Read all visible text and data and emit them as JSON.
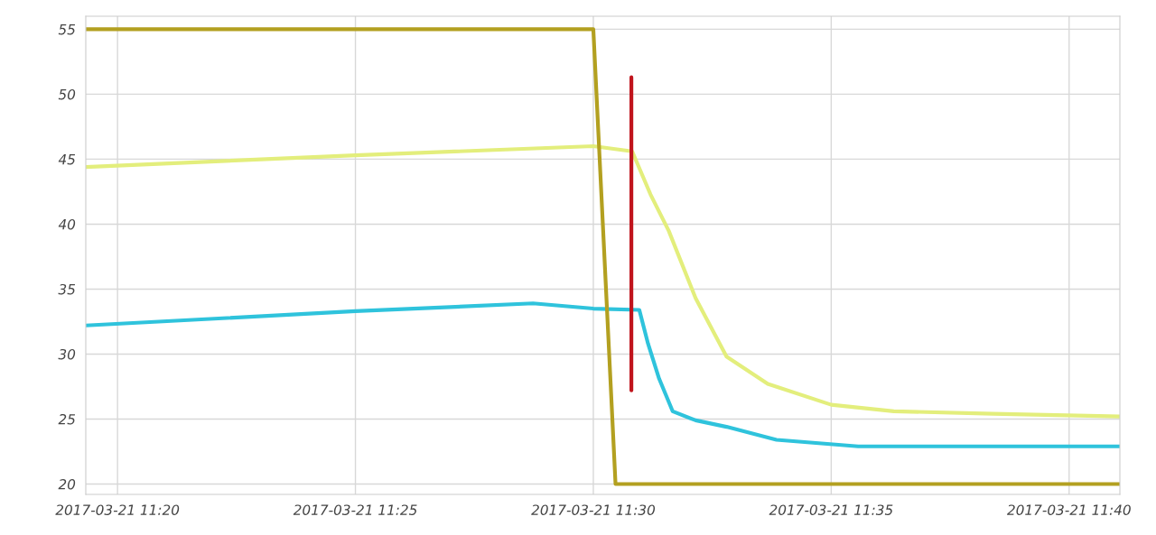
{
  "chart_data": {
    "type": "line",
    "xlim": [
      "2017-03-21T11:19:20",
      "2017-03-21T11:41:04"
    ],
    "ylim": [
      19.2,
      56
    ],
    "xticks": [
      {
        "value": "2017-03-21T11:20",
        "label": "2017-03-21 11:20"
      },
      {
        "value": "2017-03-21T11:25",
        "label": "2017-03-21 11:25"
      },
      {
        "value": "2017-03-21T11:30",
        "label": "2017-03-21 11:30"
      },
      {
        "value": "2017-03-21T11:35",
        "label": "2017-03-21 11:35"
      },
      {
        "value": "2017-03-21T11:40",
        "label": "2017-03-21 11:40"
      }
    ],
    "yticks": [
      20,
      25,
      30,
      35,
      40,
      45,
      50,
      55
    ],
    "grid": true,
    "marker": "none",
    "line_style": "solid",
    "series": [
      {
        "color": "#e3ee7c",
        "x": [
          "2017-03-21T11:19:20",
          "2017-03-21T11:25:00",
          "2017-03-21T11:30:00",
          "2017-03-21T11:30:49",
          "2017-03-21T11:31:12",
          "2017-03-21T11:31:35",
          "2017-03-21T11:32:09",
          "2017-03-21T11:32:48",
          "2017-03-21T11:33:40",
          "2017-03-21T11:35:00",
          "2017-03-21T11:36:19",
          "2017-03-21T11:38:24",
          "2017-03-21T11:41:04"
        ],
        "values": [
          44.4,
          45.3,
          46.0,
          45.6,
          42.3,
          39.5,
          34.3,
          29.8,
          27.7,
          26.1,
          25.6,
          25.4,
          25.2
        ]
      },
      {
        "color": "#2fc3dc",
        "x": [
          "2017-03-21T11:19:20",
          "2017-03-21T11:25:00",
          "2017-03-21T11:28:44",
          "2017-03-21T11:30:00",
          "2017-03-21T11:30:58",
          "2017-03-21T11:31:09",
          "2017-03-21T11:31:23",
          "2017-03-21T11:31:40",
          "2017-03-21T11:32:09",
          "2017-03-21T11:32:48",
          "2017-03-21T11:33:51",
          "2017-03-21T11:35:34",
          "2017-03-21T11:41:04"
        ],
        "values": [
          32.2,
          33.3,
          33.9,
          33.5,
          33.4,
          30.8,
          28.1,
          25.6,
          24.9,
          24.4,
          23.4,
          22.9,
          22.9
        ]
      },
      {
        "color": "#b3a020",
        "x": [
          "2017-03-21T11:19:20",
          "2017-03-21T11:30:00",
          "2017-03-21T11:30:28",
          "2017-03-21T11:41:04"
        ],
        "values": [
          55,
          55,
          20,
          20
        ]
      },
      {
        "color": "#c0141c",
        "x": [
          "2017-03-21T11:30:48",
          "2017-03-21T11:30:48"
        ],
        "values": [
          51.3,
          27.2
        ]
      }
    ]
  }
}
